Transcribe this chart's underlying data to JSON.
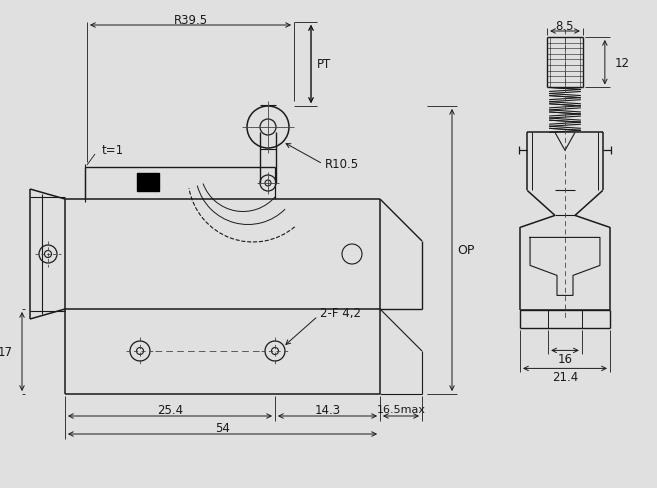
{
  "bg_color": "#e0e0e0",
  "line_color": "#1a1a1a",
  "text_color": "#1a1a1a",
  "figsize": [
    6.57,
    4.89
  ],
  "dpi": 100,
  "annotations": {
    "R39_5": "R39.5",
    "PT": "PT",
    "R10_5": "R10.5",
    "t1": "t=1",
    "OP": "OP",
    "2F42": "2-F 4,2",
    "dim17": "17",
    "dim25_4": "25.4",
    "dim14_3": "14.3",
    "dim54": "54",
    "dim16_5": "16.5max",
    "dim8_5": "8.5",
    "dim12": "12",
    "dim16": "16",
    "dim21_4": "21.4"
  }
}
